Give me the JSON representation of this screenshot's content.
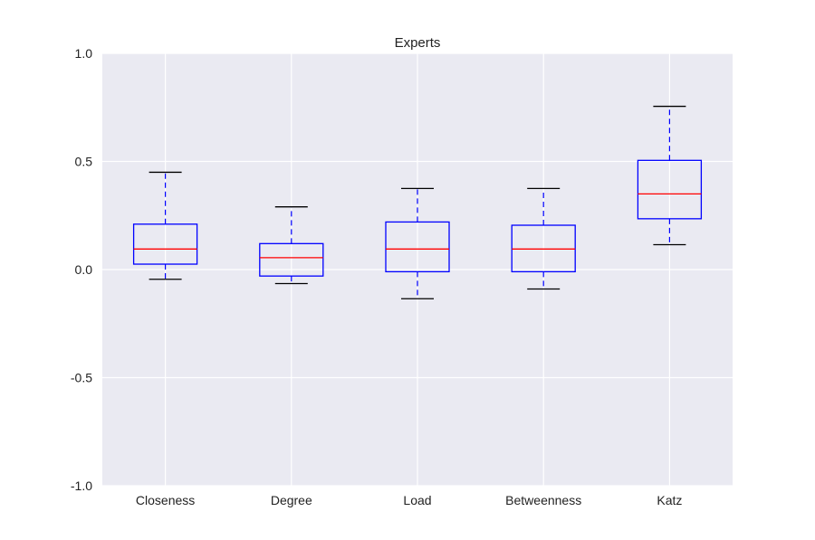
{
  "chart_data": {
    "type": "box",
    "title": "Experts",
    "xlabel": "",
    "ylabel": "",
    "ylim": [
      -1.0,
      1.0
    ],
    "yticks": [
      "-1.0",
      "-0.5",
      "0.0",
      "0.5",
      "1.0"
    ],
    "grid": true,
    "categories": [
      "Closeness",
      "Degree",
      "Load",
      "Betweenness",
      "Katz"
    ],
    "boxes": [
      {
        "whisker_low": -0.045,
        "q1": 0.025,
        "median": 0.095,
        "q3": 0.21,
        "whisker_high": 0.45
      },
      {
        "whisker_low": -0.065,
        "q1": -0.03,
        "median": 0.055,
        "q3": 0.12,
        "whisker_high": 0.29
      },
      {
        "whisker_low": -0.135,
        "q1": -0.01,
        "median": 0.095,
        "q3": 0.22,
        "whisker_high": 0.375
      },
      {
        "whisker_low": -0.09,
        "q1": -0.01,
        "median": 0.095,
        "q3": 0.205,
        "whisker_high": 0.375
      },
      {
        "whisker_low": 0.115,
        "q1": 0.235,
        "median": 0.35,
        "q3": 0.505,
        "whisker_high": 0.755
      }
    ],
    "colors": {
      "background": "#eaeaf2",
      "grid": "#ffffff",
      "box": "#0000ff",
      "median": "#ff0000",
      "whisker": "#0000ff",
      "cap": "#000000"
    }
  }
}
